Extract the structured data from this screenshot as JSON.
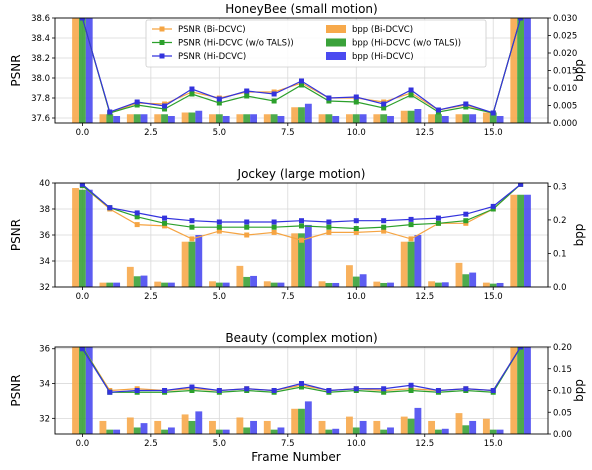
{
  "figure": {
    "xlabel": "Frame Number",
    "colors": {
      "psnr_bi": "#f5a442",
      "psnr_hi_wo": "#2ca02c",
      "psnr_hi": "#3333dd",
      "bpp_bi": "#f7a94b",
      "bpp_hi_wo": "#3aa23a",
      "bpp_hi": "#4a4af0"
    }
  },
  "legend": {
    "entries": [
      {
        "key": "psnr_bi",
        "label": "PSNR (Bi-DCVC)",
        "kind": "line",
        "color": "#f5a442"
      },
      {
        "key": "psnr_hi_wo",
        "label": "PSNR (Hi-DCVC (w/o TALS))",
        "kind": "line",
        "color": "#2ca02c"
      },
      {
        "key": "psnr_hi",
        "label": "PSNR (Hi-DCVC)",
        "kind": "line",
        "color": "#3333dd"
      },
      {
        "key": "bpp_bi",
        "label": "bpp (Bi-DCVC)",
        "kind": "bar",
        "color": "#f7a94b"
      },
      {
        "key": "bpp_hi_wo",
        "label": "bpp (Hi-DCVC (w/o TALS))",
        "kind": "bar",
        "color": "#3aa23a"
      },
      {
        "key": "bpp_hi",
        "label": "bpp (Hi-DCVC)",
        "kind": "bar",
        "color": "#4a4af0"
      }
    ]
  },
  "chart_data": [
    {
      "type": "bar+line",
      "title": "HoneyBee (small motion)",
      "ylabel": "PSNR",
      "y2label": "bpp",
      "x": [
        0,
        1,
        2,
        3,
        4,
        5,
        6,
        7,
        8,
        9,
        10,
        11,
        12,
        13,
        14,
        15,
        16
      ],
      "xlim": [
        -1,
        17
      ],
      "ylim": [
        37.55,
        38.6
      ],
      "y2lim": [
        0,
        0.03
      ],
      "xticks": [
        "0.0",
        "2.5",
        "5.0",
        "7.5",
        "10.0",
        "12.5",
        "15.0"
      ],
      "xtick_values": [
        0,
        2.5,
        5,
        7.5,
        10,
        12.5,
        15
      ],
      "yticks": [
        "37.6",
        "37.8",
        "38.0",
        "38.2",
        "38.4",
        "38.6"
      ],
      "ytick_values": [
        37.6,
        37.8,
        38.0,
        38.2,
        38.4,
        38.6
      ],
      "y2ticks": [
        "0.000",
        "0.005",
        "0.010",
        "0.015",
        "0.020",
        "0.025",
        "0.030"
      ],
      "y2tick_values": [
        0,
        0.005,
        0.01,
        0.015,
        0.02,
        0.025,
        0.03
      ],
      "series_lines": [
        {
          "name": "PSNR (Bi-DCVC)",
          "key": "psnr_bi",
          "values": [
            38.6,
            37.65,
            37.75,
            37.74,
            37.86,
            37.8,
            37.86,
            37.86,
            37.95,
            37.8,
            37.8,
            37.76,
            37.85,
            37.68,
            37.73,
            37.65,
            38.6
          ]
        },
        {
          "name": "PSNR (Hi-DCVC (w/o TALS))",
          "key": "psnr_hi_wo",
          "values": [
            38.6,
            37.65,
            37.73,
            37.69,
            37.84,
            37.75,
            37.82,
            37.77,
            37.93,
            37.77,
            37.76,
            37.7,
            37.83,
            37.66,
            37.71,
            37.65,
            38.6
          ]
        },
        {
          "name": "PSNR (Hi-DCVC)",
          "key": "psnr_hi",
          "values": [
            38.6,
            37.66,
            37.76,
            37.72,
            37.89,
            37.79,
            37.87,
            37.84,
            37.97,
            37.8,
            37.81,
            37.74,
            37.88,
            37.68,
            37.74,
            37.65,
            38.6
          ]
        }
      ],
      "series_bars": [
        {
          "name": "bpp (Bi-DCVC)",
          "key": "bpp_bi",
          "values": [
            0.03,
            0.0025,
            0.0025,
            0.0025,
            0.003,
            0.0025,
            0.0025,
            0.0025,
            0.0045,
            0.0025,
            0.0025,
            0.0025,
            0.0035,
            0.0025,
            0.0025,
            0.003,
            0.03
          ]
        },
        {
          "name": "bpp (Hi-DCVC (w/o TALS))",
          "key": "bpp_hi_wo",
          "values": [
            0.03,
            0.0025,
            0.0025,
            0.0025,
            0.003,
            0.0025,
            0.0025,
            0.0025,
            0.0045,
            0.0025,
            0.0025,
            0.0025,
            0.0035,
            0.0025,
            0.0025,
            0.003,
            0.03
          ]
        },
        {
          "name": "bpp (Hi-DCVC)",
          "key": "bpp_hi",
          "values": [
            0.03,
            0.002,
            0.0025,
            0.002,
            0.0035,
            0.002,
            0.0025,
            0.002,
            0.0055,
            0.002,
            0.0025,
            0.002,
            0.004,
            0.002,
            0.0025,
            0.002,
            0.03
          ]
        }
      ]
    },
    {
      "type": "bar+line",
      "title": "Jockey (large motion)",
      "ylabel": "PSNR",
      "y2label": "bpp",
      "x": [
        0,
        1,
        2,
        3,
        4,
        5,
        6,
        7,
        8,
        9,
        10,
        11,
        12,
        13,
        14,
        15,
        16
      ],
      "xlim": [
        -1,
        17
      ],
      "ylim": [
        32,
        40
      ],
      "y2lim": [
        0,
        0.31
      ],
      "xticks": [
        "0.0",
        "2.5",
        "5.0",
        "7.5",
        "10.0",
        "12.5",
        "15.0"
      ],
      "xtick_values": [
        0,
        2.5,
        5,
        7.5,
        10,
        12.5,
        15
      ],
      "yticks": [
        "32",
        "34",
        "36",
        "38",
        "40"
      ],
      "ytick_values": [
        32,
        34,
        36,
        38,
        40
      ],
      "y2ticks": [
        "0.0",
        "0.1",
        "0.2",
        "0.3"
      ],
      "y2tick_values": [
        0,
        0.1,
        0.2,
        0.3
      ],
      "series_lines": [
        {
          "name": "PSNR (Bi-DCVC)",
          "key": "psnr_bi",
          "values": [
            39.8,
            38.0,
            36.8,
            36.7,
            35.7,
            36.3,
            36.0,
            36.2,
            35.6,
            36.2,
            36.2,
            36.3,
            35.7,
            36.9,
            36.9,
            38.0,
            39.9
          ]
        },
        {
          "name": "PSNR (Hi-DCVC (w/o TALS))",
          "key": "psnr_hi_wo",
          "values": [
            39.8,
            38.1,
            37.4,
            36.9,
            36.6,
            36.6,
            36.6,
            36.6,
            36.7,
            36.6,
            36.5,
            36.6,
            36.8,
            36.9,
            37.1,
            38.0,
            39.9
          ]
        },
        {
          "name": "PSNR (Hi-DCVC)",
          "key": "psnr_hi",
          "values": [
            39.9,
            38.1,
            37.7,
            37.3,
            37.1,
            37.0,
            37.0,
            37.0,
            37.1,
            37.0,
            37.1,
            37.1,
            37.2,
            37.3,
            37.6,
            38.2,
            39.9
          ]
        }
      ],
      "series_bars": [
        {
          "name": "bpp (Bi-DCVC)",
          "key": "bpp_bi",
          "values": [
            0.295,
            0.013,
            0.06,
            0.016,
            0.135,
            0.017,
            0.063,
            0.017,
            0.16,
            0.017,
            0.065,
            0.016,
            0.135,
            0.017,
            0.072,
            0.013,
            0.275
          ]
        },
        {
          "name": "bpp (Hi-DCVC (w/o TALS))",
          "key": "bpp_hi_wo",
          "values": [
            0.29,
            0.013,
            0.032,
            0.013,
            0.135,
            0.013,
            0.03,
            0.013,
            0.16,
            0.012,
            0.031,
            0.012,
            0.135,
            0.013,
            0.038,
            0.01,
            0.275
          ]
        },
        {
          "name": "bpp (Hi-DCVC)",
          "key": "bpp_hi",
          "values": [
            0.29,
            0.013,
            0.034,
            0.013,
            0.155,
            0.013,
            0.033,
            0.013,
            0.185,
            0.012,
            0.038,
            0.013,
            0.155,
            0.014,
            0.043,
            0.012,
            0.275
          ]
        }
      ]
    },
    {
      "type": "bar+line",
      "title": "Beauty (complex motion)",
      "ylabel": "PSNR",
      "y2label": "bpp",
      "x": [
        0,
        1,
        2,
        3,
        4,
        5,
        6,
        7,
        8,
        9,
        10,
        11,
        12,
        13,
        14,
        15,
        16
      ],
      "xlim": [
        -1,
        17
      ],
      "ylim": [
        31.1,
        36.1
      ],
      "y2lim": [
        0,
        0.2
      ],
      "xticks": [
        "0.0",
        "2.5",
        "5.0",
        "7.5",
        "10.0",
        "12.5",
        "15.0"
      ],
      "xtick_values": [
        0,
        2.5,
        5,
        7.5,
        10,
        12.5,
        15
      ],
      "yticks": [
        "32",
        "34",
        "36"
      ],
      "ytick_values": [
        32,
        34,
        36
      ],
      "y2ticks": [
        "0.00",
        "0.05",
        "0.10",
        "0.15",
        "0.20"
      ],
      "y2tick_values": [
        0,
        0.05,
        0.1,
        0.15,
        0.2
      ],
      "series_lines": [
        {
          "name": "PSNR (Bi-DCVC)",
          "key": "psnr_bi",
          "values": [
            36.1,
            33.6,
            33.7,
            33.6,
            33.7,
            33.6,
            33.7,
            33.6,
            33.9,
            33.6,
            33.7,
            33.6,
            33.7,
            33.6,
            33.7,
            33.6,
            36.1
          ]
        },
        {
          "name": "PSNR (Hi-DCVC (w/o TALS))",
          "key": "psnr_hi_wo",
          "values": [
            36.1,
            33.5,
            33.5,
            33.5,
            33.6,
            33.5,
            33.6,
            33.5,
            33.8,
            33.5,
            33.6,
            33.5,
            33.6,
            33.5,
            33.6,
            33.5,
            36.1
          ]
        },
        {
          "name": "PSNR (Hi-DCVC)",
          "key": "psnr_hi",
          "values": [
            36.0,
            33.5,
            33.6,
            33.6,
            33.8,
            33.6,
            33.7,
            33.6,
            34.0,
            33.6,
            33.7,
            33.7,
            33.9,
            33.6,
            33.7,
            33.6,
            36.1
          ]
        }
      ],
      "series_bars": [
        {
          "name": "bpp (Bi-DCVC)",
          "key": "bpp_bi",
          "values": [
            0.2,
            0.03,
            0.038,
            0.03,
            0.045,
            0.03,
            0.038,
            0.03,
            0.058,
            0.03,
            0.04,
            0.03,
            0.04,
            0.03,
            0.048,
            0.035,
            0.2
          ]
        },
        {
          "name": "bpp (Hi-DCVC (w/o TALS))",
          "key": "bpp_hi_wo",
          "values": [
            0.2,
            0.01,
            0.015,
            0.01,
            0.03,
            0.01,
            0.015,
            0.01,
            0.058,
            0.01,
            0.015,
            0.01,
            0.035,
            0.01,
            0.02,
            0.01,
            0.2
          ]
        },
        {
          "name": "bpp (Hi-DCVC)",
          "key": "bpp_hi",
          "values": [
            0.2,
            0.01,
            0.025,
            0.015,
            0.052,
            0.01,
            0.03,
            0.015,
            0.075,
            0.012,
            0.03,
            0.015,
            0.06,
            0.012,
            0.03,
            0.01,
            0.2
          ]
        }
      ]
    }
  ]
}
